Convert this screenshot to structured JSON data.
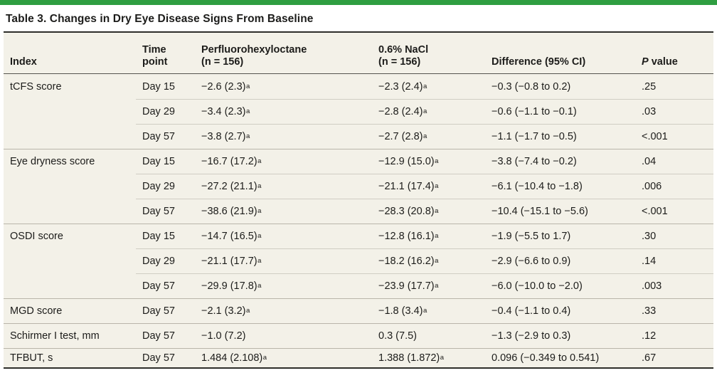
{
  "accent_color": "#2f9e41",
  "row_background_color": "#f3f1e8",
  "title": "Table 3. Changes in Dry Eye Disease Signs From Baseline",
  "table": {
    "header": {
      "index": "Index",
      "time_l1": "Time",
      "time_l2": "point",
      "pfho_l1": "Perfluorohexyloctane",
      "pfho_l2": "(n = 156)",
      "nacl_l1": "0.6% NaCl",
      "nacl_l2": "(n = 156)",
      "diff": "Difference (95% CI)",
      "p_italic": "P",
      "p_rest": " value"
    },
    "rows": [
      {
        "index": "tCFS score",
        "time": "Day 15",
        "pfho": "−2.6 (2.3)",
        "pfho_sup": "a",
        "nacl": "−2.3 (2.4)",
        "nacl_sup": "a",
        "diff": "−0.3 (−0.8 to 0.2)",
        "p": ".25"
      },
      {
        "index": "",
        "time": "Day 29",
        "pfho": "−3.4 (2.3)",
        "pfho_sup": "a",
        "nacl": "−2.8 (2.4)",
        "nacl_sup": "a",
        "diff": "−0.6 (−1.1 to −0.1)",
        "p": ".03"
      },
      {
        "index": "",
        "time": "Day 57",
        "pfho": "−3.8 (2.7)",
        "pfho_sup": "a",
        "nacl": "−2.7 (2.8)",
        "nacl_sup": "a",
        "diff": "−1.1 (−1.7 to −0.5)",
        "p": "<.001"
      },
      {
        "index": "Eye dryness score",
        "time": "Day 15",
        "pfho": "−16.7 (17.2)",
        "pfho_sup": "a",
        "nacl": "−12.9 (15.0)",
        "nacl_sup": "a",
        "diff": "−3.8 (−7.4 to −0.2)",
        "p": ".04"
      },
      {
        "index": "",
        "time": "Day 29",
        "pfho": "−27.2 (21.1)",
        "pfho_sup": "a",
        "nacl": "−21.1 (17.4)",
        "nacl_sup": "a",
        "diff": "−6.1 (−10.4 to −1.8)",
        "p": ".006"
      },
      {
        "index": "",
        "time": "Day 57",
        "pfho": "−38.6 (21.9)",
        "pfho_sup": "a",
        "nacl": "−28.3 (20.8)",
        "nacl_sup": "a",
        "diff": "−10.4 (−15.1 to −5.6)",
        "p": "<.001"
      },
      {
        "index": "OSDI score",
        "time": "Day 15",
        "pfho": "−14.7 (16.5)",
        "pfho_sup": "a",
        "nacl": "−12.8 (16.1)",
        "nacl_sup": "a",
        "diff": "−1.9 (−5.5 to 1.7)",
        "p": ".30"
      },
      {
        "index": "",
        "time": "Day 29",
        "pfho": "−21.1 (17.7)",
        "pfho_sup": "a",
        "nacl": "−18.2 (16.2)",
        "nacl_sup": "a",
        "diff": "−2.9 (−6.6 to 0.9)",
        "p": ".14"
      },
      {
        "index": "",
        "time": "Day 57",
        "pfho": "−29.9 (17.8)",
        "pfho_sup": "a",
        "nacl": "−23.9 (17.7)",
        "nacl_sup": "a",
        "diff": "−6.0 (−10.0 to −2.0)",
        "p": ".003"
      },
      {
        "index": "MGD score",
        "time": "Day 57",
        "pfho": "−2.1 (3.2)",
        "pfho_sup": "a",
        "nacl": "−1.8 (3.4)",
        "nacl_sup": "a",
        "diff": "−0.4 (−1.1 to 0.4)",
        "p": ".33"
      },
      {
        "index": "Schirmer I test, mm",
        "time": "Day 57",
        "pfho": "−1.0 (7.2)",
        "pfho_sup": "",
        "nacl": "0.3 (7.5)",
        "nacl_sup": "",
        "diff": "−1.3 (−2.9 to 0.3)",
        "p": ".12"
      },
      {
        "index": "TFBUT, s",
        "time": "Day 57",
        "pfho": "1.484 (2.108)",
        "pfho_sup": "a",
        "nacl": "1.388 (1.872)",
        "nacl_sup": "a",
        "diff": "0.096 (−0.349 to 0.541)",
        "p": ".67"
      }
    ]
  }
}
